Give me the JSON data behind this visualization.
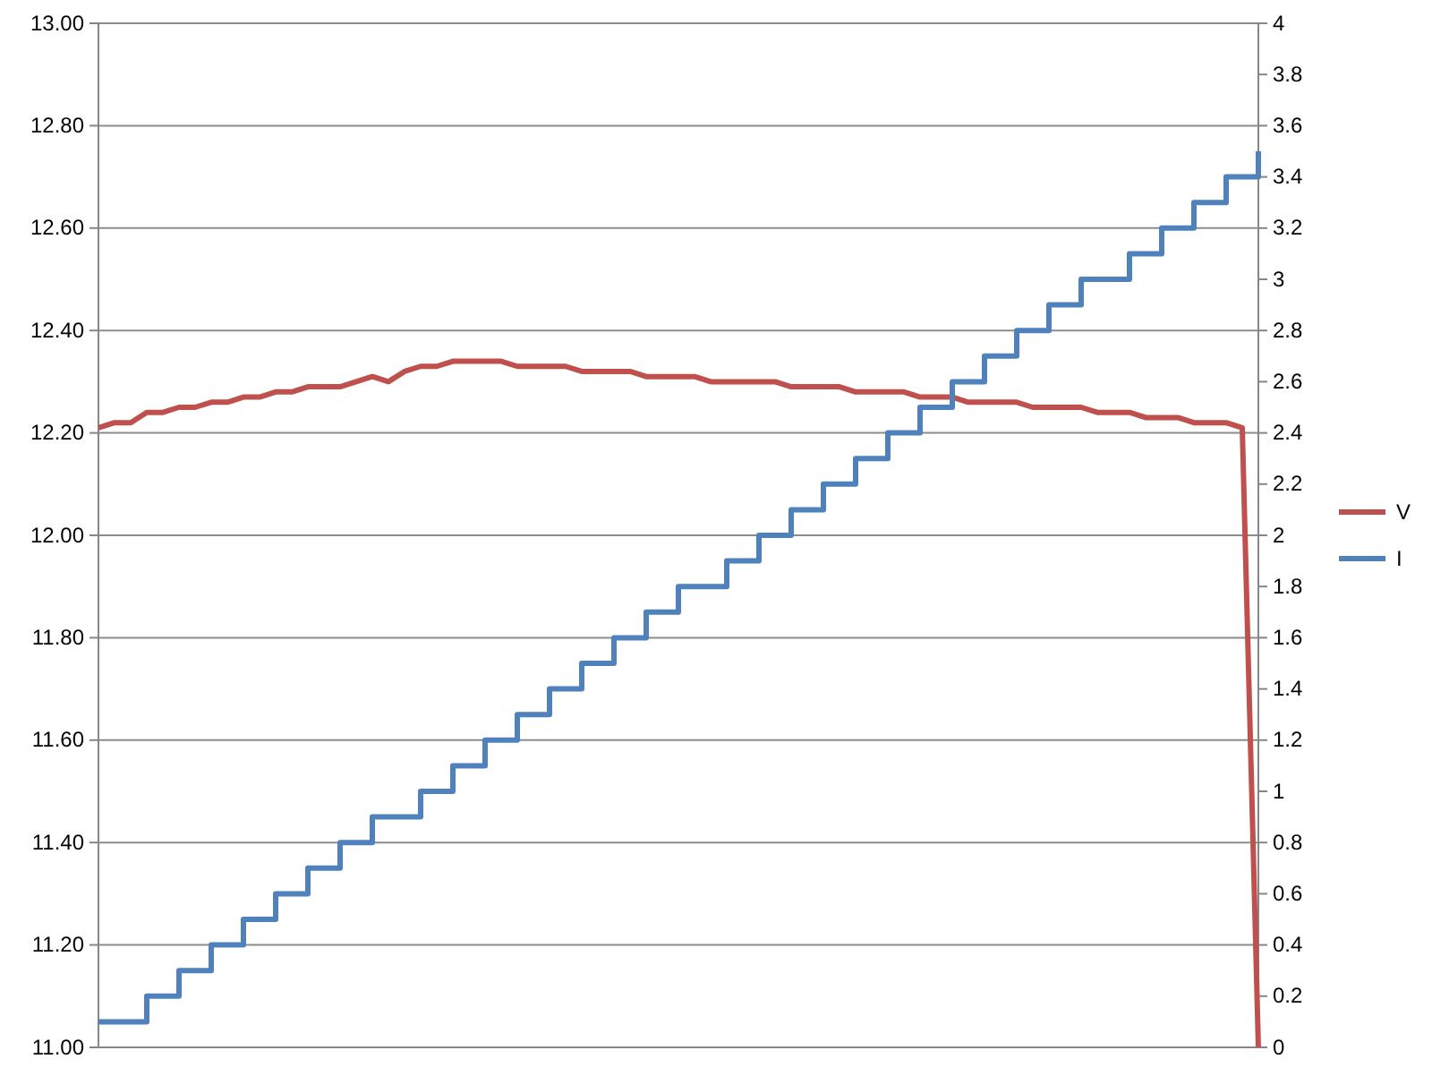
{
  "chart_data": {
    "type": "line",
    "categories": [
      null,
      null,
      null,
      null,
      null,
      null,
      null,
      null,
      null,
      null,
      null,
      null,
      null,
      null,
      null,
      null,
      null,
      null,
      null,
      null,
      null,
      null,
      null,
      null,
      null,
      null,
      null,
      null,
      null,
      null,
      null,
      null,
      null,
      null,
      null,
      null,
      null,
      null,
      null,
      null,
      null,
      null,
      null,
      null,
      null,
      null,
      null,
      null,
      null,
      null,
      null,
      null,
      null,
      null,
      null,
      null,
      null,
      null,
      null,
      null,
      null,
      null,
      null,
      null,
      null,
      null,
      null,
      null,
      null,
      null,
      null,
      null,
      null
    ],
    "series": [
      {
        "name": "V",
        "color": "#c0504d",
        "values": [
          12.21,
          12.22,
          12.22,
          12.24,
          12.24,
          12.25,
          12.25,
          12.26,
          12.26,
          12.27,
          12.27,
          12.28,
          12.28,
          12.29,
          12.29,
          12.29,
          12.3,
          12.31,
          12.3,
          12.32,
          12.33,
          12.33,
          12.34,
          12.34,
          12.34,
          12.34,
          12.33,
          12.33,
          12.33,
          12.33,
          12.32,
          12.32,
          12.32,
          12.32,
          12.31,
          12.31,
          12.31,
          12.31,
          12.3,
          12.3,
          12.3,
          12.3,
          12.3,
          12.29,
          12.29,
          12.29,
          12.29,
          12.28,
          12.28,
          12.28,
          12.28,
          12.27,
          12.27,
          12.27,
          12.26,
          12.26,
          12.26,
          12.26,
          12.25,
          12.25,
          12.25,
          12.25,
          12.24,
          12.24,
          12.24,
          12.23,
          12.23,
          12.23,
          12.22,
          12.22,
          12.22,
          12.21,
          11.0
        ]
      },
      {
        "name": "I",
        "color": "#4f81bd",
        "type": "step",
        "axis": "y2",
        "values": [
          0.1,
          0.1,
          0.1,
          0.2,
          0.2,
          0.3,
          0.3,
          0.4,
          0.4,
          0.5,
          0.5,
          0.6,
          0.6,
          0.7,
          0.7,
          0.8,
          0.8,
          0.9,
          0.9,
          0.9,
          1.0,
          1.0,
          1.1,
          1.1,
          1.2,
          1.2,
          1.3,
          1.3,
          1.4,
          1.4,
          1.5,
          1.5,
          1.6,
          1.6,
          1.7,
          1.7,
          1.8,
          1.8,
          1.8,
          1.9,
          1.9,
          2.0,
          2.0,
          2.1,
          2.1,
          2.2,
          2.2,
          2.3,
          2.3,
          2.4,
          2.4,
          2.5,
          2.5,
          2.6,
          2.6,
          2.7,
          2.7,
          2.8,
          2.8,
          2.9,
          2.9,
          3.0,
          3.0,
          3.0,
          3.1,
          3.1,
          3.2,
          3.2,
          3.3,
          3.3,
          3.4,
          3.4,
          3.5
        ]
      }
    ],
    "ylim": [
      11,
      13
    ],
    "yticks": [
      {
        "value": 11,
        "label": "11.00"
      },
      {
        "value": 11.2,
        "label": "11.20"
      },
      {
        "value": 11.4,
        "label": "11.40"
      },
      {
        "value": 11.6,
        "label": "11.60"
      },
      {
        "value": 11.8,
        "label": "11.80"
      },
      {
        "value": 12,
        "label": "12.00"
      },
      {
        "value": 12.2,
        "label": "12.20"
      },
      {
        "value": 12.4,
        "label": "12.40"
      },
      {
        "value": 12.6,
        "label": "12.60"
      },
      {
        "value": 12.8,
        "label": "12.80"
      },
      {
        "value": 13,
        "label": "13.00"
      }
    ],
    "y2lim": [
      0,
      4
    ],
    "y2ticks": [
      0,
      0.2,
      0.4,
      0.6,
      0.8,
      1,
      1.2,
      1.4,
      1.6,
      1.8,
      2,
      2.2,
      2.4,
      2.6,
      2.8,
      3,
      3.2,
      3.4,
      3.6,
      3.8,
      4
    ],
    "grid": "y",
    "legend": "right",
    "marker": "none",
    "line_style": "solid"
  }
}
